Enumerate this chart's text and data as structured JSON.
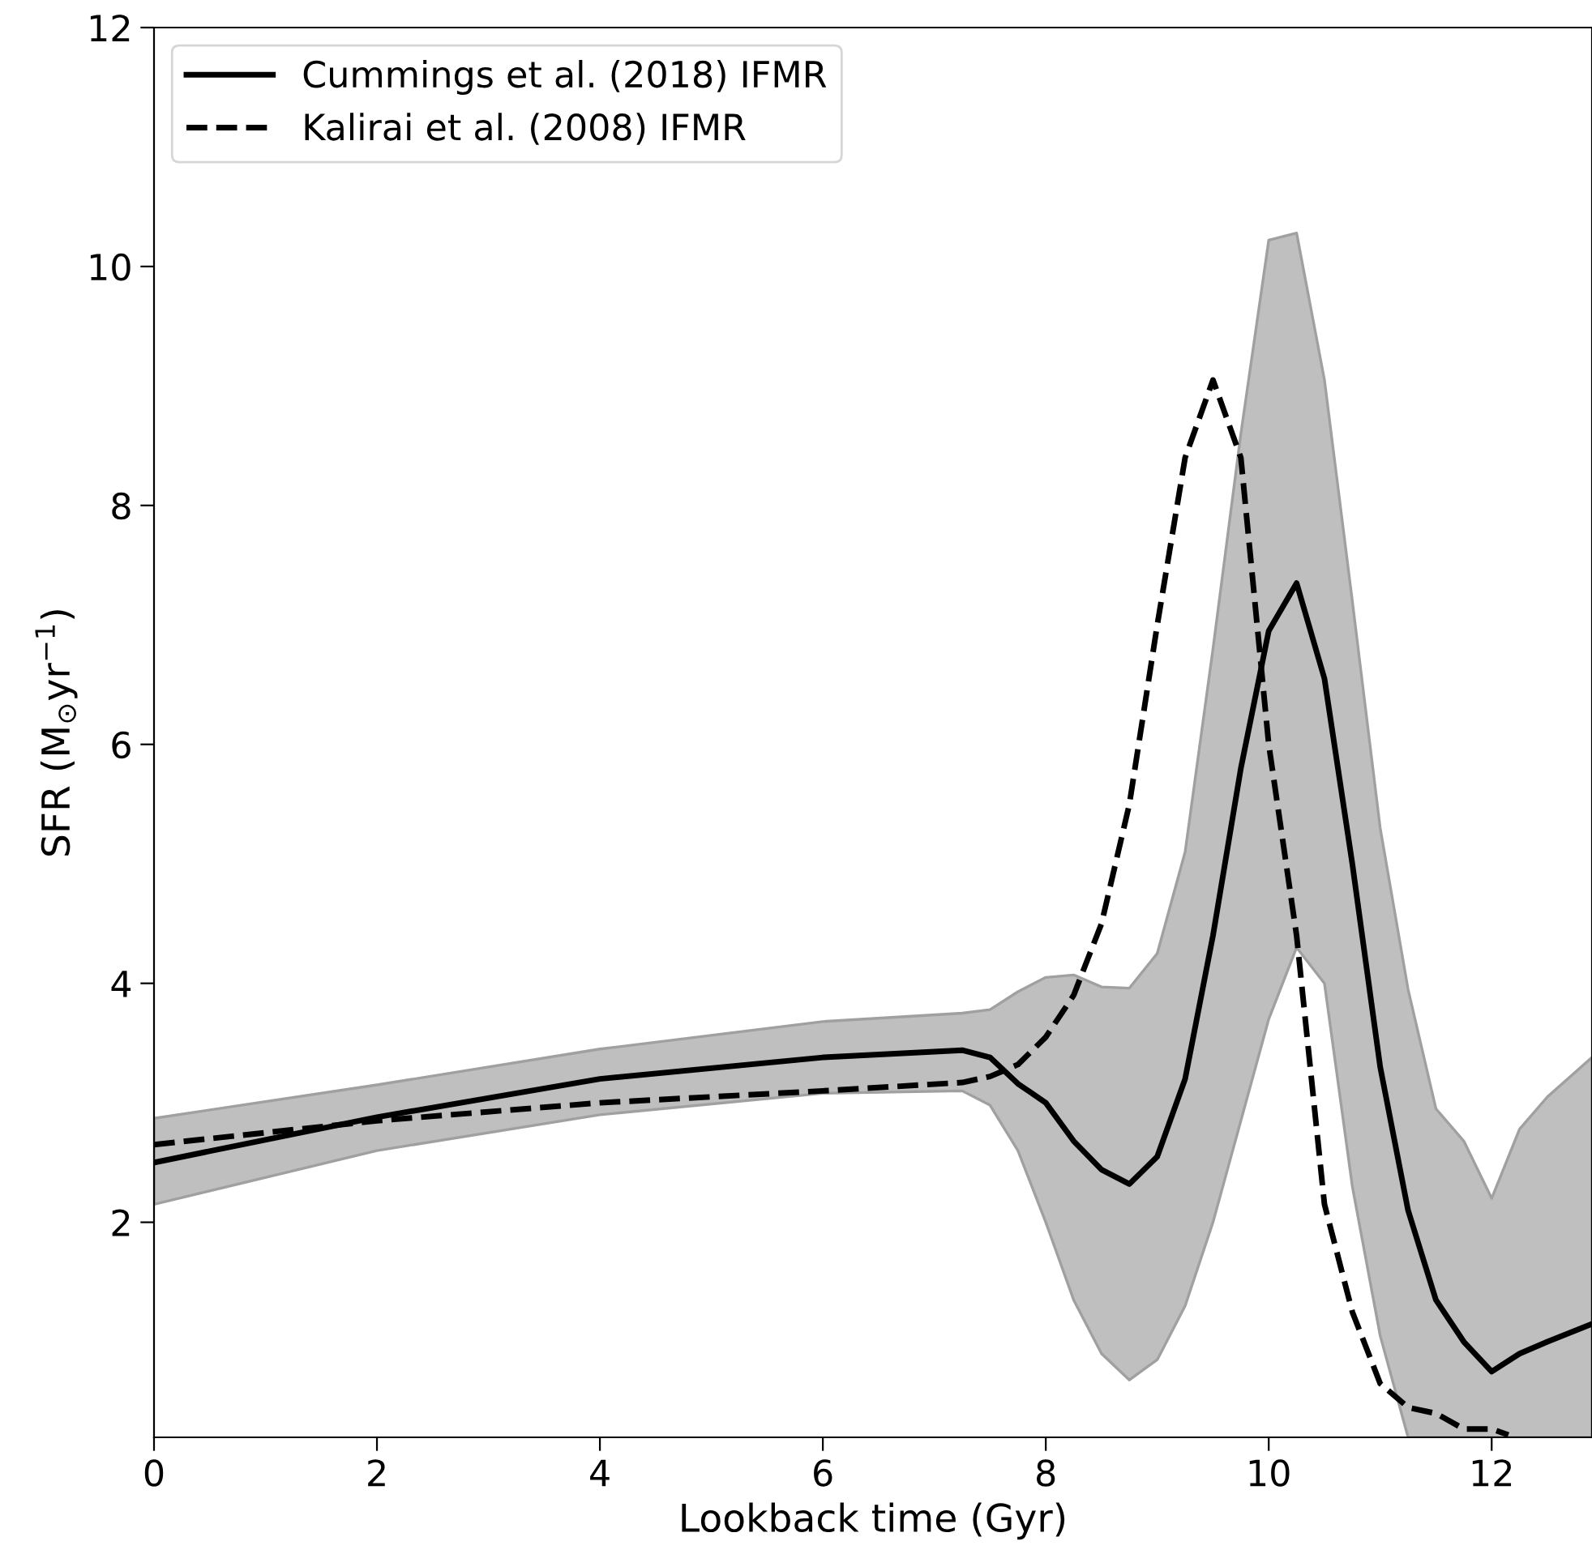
{
  "chart_data": {
    "type": "line",
    "xlabel": "Lookback time (Gyr)",
    "ylabel": "SFR (M$_{⊙}$yr$^{−1}$)",
    "xlim": [
      0,
      12.9
    ],
    "ylim": [
      0.2,
      12
    ],
    "xticks": [
      0,
      2,
      4,
      6,
      8,
      10,
      12
    ],
    "yticks": [
      2,
      4,
      6,
      8,
      10,
      12
    ],
    "grid": false,
    "legend": "top left",
    "series": [
      {
        "name": "Cummings et al. (2018) IFMR",
        "color": "#000000",
        "line_style": "solid",
        "x": [
          0,
          2,
          4,
          6,
          7.25,
          7.5,
          7.75,
          8.0,
          8.25,
          8.5,
          8.75,
          9.0,
          9.25,
          9.5,
          9.75,
          10.0,
          10.25,
          10.5,
          10.75,
          11.0,
          11.25,
          11.5,
          11.75,
          12.0,
          12.25,
          12.5,
          12.9
        ],
        "values": [
          2.5,
          2.88,
          3.2,
          3.38,
          3.44,
          3.38,
          3.16,
          3.0,
          2.68,
          2.44,
          2.32,
          2.55,
          3.2,
          4.4,
          5.8,
          6.95,
          7.35,
          6.55,
          5.0,
          3.3,
          2.1,
          1.35,
          1.0,
          0.75,
          0.9,
          1.0,
          1.15
        ],
        "lower": [
          2.15,
          2.6,
          2.9,
          3.08,
          3.1,
          2.98,
          2.6,
          2.0,
          1.35,
          0.9,
          0.68,
          0.85,
          1.3,
          2.0,
          2.85,
          3.7,
          4.3,
          4.0,
          2.3,
          1.05,
          0.2,
          0.2,
          0.2,
          0.2,
          0.2,
          0.2,
          0.2
        ],
        "upper": [
          2.87,
          3.15,
          3.45,
          3.68,
          3.75,
          3.78,
          3.93,
          4.05,
          4.07,
          3.97,
          3.96,
          4.25,
          5.1,
          6.8,
          8.6,
          10.22,
          10.28,
          9.05,
          7.2,
          5.3,
          3.95,
          2.95,
          2.68,
          2.2,
          2.78,
          3.05,
          3.38
        ]
      },
      {
        "name": "Kalirai et al. (2008) IFMR",
        "color": "#000000",
        "line_style": "dashed",
        "x": [
          0,
          2,
          4,
          6,
          7.25,
          7.5,
          7.75,
          8.0,
          8.25,
          8.5,
          8.75,
          9.0,
          9.25,
          9.5,
          9.75,
          10.0,
          10.25,
          10.5,
          10.75,
          11.0,
          11.25,
          11.5,
          11.75,
          12.0,
          12.15
        ],
        "values": [
          2.65,
          2.85,
          3.0,
          3.1,
          3.17,
          3.22,
          3.32,
          3.55,
          3.9,
          4.5,
          5.5,
          7.0,
          8.4,
          9.05,
          8.4,
          6.0,
          4.4,
          2.15,
          1.25,
          0.65,
          0.45,
          0.4,
          0.27,
          0.27,
          0.22
        ]
      }
    ]
  }
}
